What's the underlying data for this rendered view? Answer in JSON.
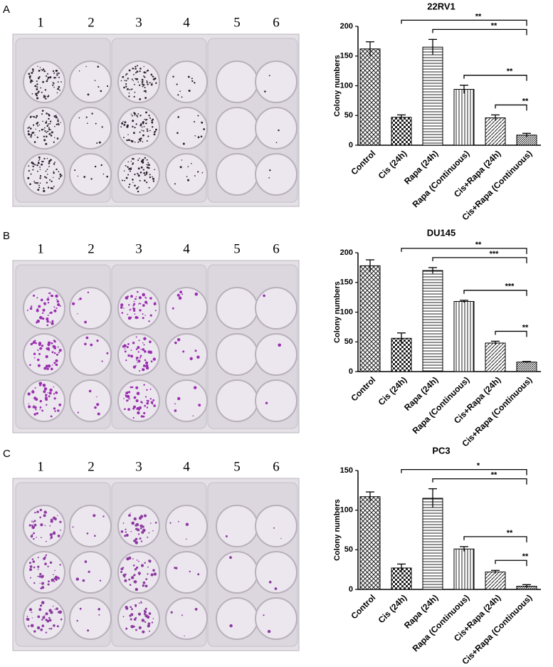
{
  "panel_labels": [
    "A",
    "B",
    "C"
  ],
  "well_numbers": [
    "1",
    "2",
    "3",
    "4",
    "5",
    "6"
  ],
  "chart_data": [
    {
      "type": "bar",
      "title": "22RV1",
      "ylabel": "Colony numbers",
      "categories": [
        "Control",
        "Cis (24h)",
        "Rapa (24h)",
        "Rapa (Continuous)",
        "Cis+Rapa (24h)",
        "Cis+Rapa (Continuous)"
      ],
      "values": [
        162,
        47,
        165,
        94,
        46,
        17
      ],
      "errors": [
        12,
        4,
        13,
        7,
        5,
        3
      ],
      "significance": [
        "**",
        "**",
        "**",
        "**"
      ],
      "ylim": [
        0,
        200
      ],
      "yticks": [
        0,
        50,
        100,
        150,
        200
      ]
    },
    {
      "type": "bar",
      "title": "DU145",
      "ylabel": "Colony numbers",
      "categories": [
        "Control",
        "Cis (24h)",
        "Rapa (24h)",
        "Rapa (Continuous)",
        "Cis+Rapa (24h)",
        "Cis+Rapa (Continuous)"
      ],
      "values": [
        178,
        56,
        170,
        118,
        48,
        16
      ],
      "errors": [
        10,
        9,
        5,
        2,
        3,
        1
      ],
      "significance": [
        "**",
        "***",
        "***",
        "**"
      ],
      "ylim": [
        0,
        200
      ],
      "yticks": [
        0,
        50,
        100,
        150,
        200
      ]
    },
    {
      "type": "bar",
      "title": "PC3",
      "ylabel": "Colony numbers",
      "categories": [
        "Control",
        "Cis (24h)",
        "Rapa (24h)",
        "Rapa (Continuous)",
        "Cis+Rapa (24h)",
        "Cis+Rapa (Continuous)"
      ],
      "values": [
        117,
        27,
        115,
        51,
        22,
        4
      ],
      "errors": [
        6,
        5,
        12,
        3,
        2,
        2
      ],
      "significance": [
        "*",
        "**",
        "**",
        "**"
      ],
      "ylim": [
        0,
        150
      ],
      "yticks": [
        0,
        50,
        100,
        150
      ]
    }
  ]
}
